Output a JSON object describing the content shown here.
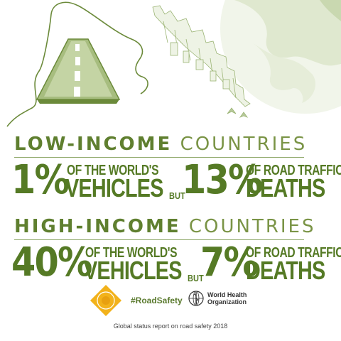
{
  "colors": {
    "primary_green": "#557a25",
    "light_green": "#a7bd7f",
    "pale_green": "#dfe8cf"
  },
  "low_income": {
    "heading_bold": "LOW-INCOME",
    "heading_light": "COUNTRIES",
    "vehicles_pct": "1%",
    "vehicles_line1": "OF THE WORLD'S",
    "vehicles_line2": "VEHICLES",
    "but": "BUT",
    "deaths_pct": "13%",
    "deaths_line1": "OF ROAD TRAFFIC",
    "deaths_line2": "DEATHS"
  },
  "high_income": {
    "heading_bold": "HIGH-INCOME",
    "heading_light": "COUNTRIES",
    "vehicles_pct": "40%",
    "vehicles_line1": "OF THE WORLD'S",
    "vehicles_line2": "VEHICLES",
    "but": "BUT",
    "deaths_pct": "7%",
    "deaths_line1": "OF ROAD TRAFFIC",
    "deaths_line2": "DEATHS"
  },
  "footer": {
    "hashtag": "#RoadSafety",
    "who_line1": "World Health",
    "who_line2": "Organization",
    "caption": "Global status report on road safety 2018"
  },
  "icons": {
    "road": "road-icon",
    "globe": "globe-icon",
    "city": "city-skyline-icon",
    "decade_badge": "decade-of-action-badge-icon",
    "who_emblem": "who-emblem-icon"
  }
}
